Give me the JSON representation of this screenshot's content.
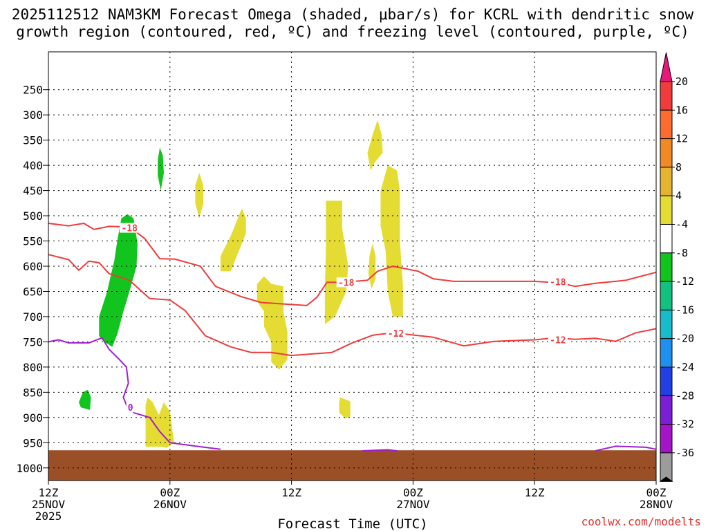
{
  "title": {
    "line1": "2025112512 NAM3KM Forecast Omega (shaded, μbar/s) for KCRL with dendritic snow",
    "line2": "growth region (contoured, red, ºC) and freezing level (contoured, purple, ºC)"
  },
  "credit": "coolwx.com/modelts",
  "chart_data": {
    "type": "time-height",
    "xlabel": "Forecast Time (UTC)",
    "xlim": [
      0,
      60
    ],
    "x_ticks": [
      {
        "h": 0,
        "label": "12Z",
        "sub": "25NOV",
        "sub2": "2025"
      },
      {
        "h": 12,
        "label": "00Z",
        "sub": "26NOV"
      },
      {
        "h": 24,
        "label": "12Z",
        "sub": ""
      },
      {
        "h": 36,
        "label": "00Z",
        "sub": "27NOV"
      },
      {
        "h": 48,
        "label": "12Z",
        "sub": ""
      },
      {
        "h": 60,
        "label": "00Z",
        "sub": "28NOV"
      }
    ],
    "ylim": [
      1025,
      175
    ],
    "y_ticks": [
      250,
      300,
      350,
      400,
      450,
      500,
      550,
      600,
      650,
      700,
      750,
      800,
      850,
      900,
      950,
      1000
    ],
    "surface_top_hPa": 965,
    "colorbar": {
      "labels": [
        "20",
        "16",
        "12",
        "8",
        "4",
        "-4",
        "-8",
        "-12",
        "-16",
        "-20",
        "-24",
        "-28",
        "-32",
        "-36"
      ],
      "colors": [
        "#f23b3b",
        "#ff6a2e",
        "#ef8a25",
        "#e4b330",
        "#e4dc32",
        "#ffffff",
        "#12c41e",
        "#12c07f",
        "#16bcc9",
        "#1e90f0",
        "#2040e6",
        "#7a1fd6",
        "#a514c8",
        "#9c9c9c"
      ],
      "top_arrow_color": "#e8177a",
      "bottom_arrow_color": "#000000"
    },
    "series": [
      {
        "name": "-18",
        "color": "#ef3b3b",
        "points": [
          [
            0,
            515
          ],
          [
            2,
            520
          ],
          [
            3.5,
            515
          ],
          [
            4.5,
            527
          ],
          [
            6,
            521
          ],
          [
            8,
            522
          ],
          [
            9.5,
            545
          ],
          [
            11,
            585
          ],
          [
            12.5,
            586
          ],
          [
            15,
            600
          ],
          [
            16.5,
            640
          ],
          [
            19,
            660
          ],
          [
            21,
            672
          ],
          [
            24,
            676
          ],
          [
            25.5,
            678
          ],
          [
            26.5,
            662
          ],
          [
            27.5,
            632
          ],
          [
            29,
            632
          ],
          [
            31.5,
            628
          ],
          [
            32.5,
            610
          ],
          [
            34,
            600
          ],
          [
            36.5,
            610
          ],
          [
            38,
            625
          ],
          [
            40,
            630
          ],
          [
            44,
            630
          ],
          [
            48,
            630
          ],
          [
            50.5,
            633
          ],
          [
            52,
            640
          ],
          [
            54,
            634
          ],
          [
            57,
            628
          ],
          [
            60,
            612
          ]
        ]
      },
      {
        "name": "-12",
        "color": "#ef3b3b",
        "points": [
          [
            0,
            577
          ],
          [
            2,
            587
          ],
          [
            3,
            608
          ],
          [
            4,
            590
          ],
          [
            5,
            593
          ],
          [
            6,
            615
          ],
          [
            8,
            628
          ],
          [
            10,
            664
          ],
          [
            12,
            667
          ],
          [
            13.5,
            688
          ],
          [
            15.5,
            738
          ],
          [
            18,
            760
          ],
          [
            20,
            771
          ],
          [
            22,
            771
          ],
          [
            24,
            777
          ],
          [
            28,
            771
          ],
          [
            30,
            752
          ],
          [
            32,
            737
          ],
          [
            34,
            732
          ],
          [
            38,
            741
          ],
          [
            41,
            758
          ],
          [
            44,
            749
          ],
          [
            48,
            746
          ],
          [
            50,
            742
          ],
          [
            52,
            745
          ],
          [
            54,
            743
          ],
          [
            56,
            749
          ],
          [
            58,
            732
          ],
          [
            60,
            724
          ]
        ]
      },
      {
        "name": "0",
        "color": "#a21dce",
        "points": [
          [
            0,
            750
          ],
          [
            1,
            746
          ],
          [
            2,
            752
          ],
          [
            4,
            752
          ],
          [
            5.3,
            742
          ],
          [
            6,
            765
          ],
          [
            7,
            785
          ],
          [
            7.7,
            800
          ],
          [
            7.9,
            832
          ],
          [
            7.4,
            860
          ],
          [
            7.8,
            880
          ],
          [
            8.5,
            891
          ],
          [
            10,
            900
          ],
          [
            11,
            928
          ],
          [
            12,
            950
          ],
          [
            15,
            958
          ],
          [
            17,
            963
          ]
        ]
      },
      {
        "name": "0-b",
        "color": "#a21dce",
        "points": [
          [
            31,
            966
          ],
          [
            33.5,
            964
          ],
          [
            34.4,
            966
          ]
        ]
      },
      {
        "name": "0-c",
        "color": "#a21dce",
        "points": [
          [
            54,
            966
          ],
          [
            56,
            957
          ],
          [
            59,
            959
          ],
          [
            60,
            963
          ]
        ]
      }
    ],
    "contour_labels": [
      {
        "text": "-18",
        "h": 8.0,
        "p": 524
      },
      {
        "text": "-18",
        "h": 29.4,
        "p": 632
      },
      {
        "text": "-18",
        "h": 50.3,
        "p": 631
      },
      {
        "text": "-12",
        "h": 34.3,
        "p": 733
      },
      {
        "text": "-12",
        "h": 50.3,
        "p": 746
      },
      {
        "text": "0",
        "h": 8.1,
        "p": 880
      }
    ],
    "regions": [
      {
        "name": "omega-neg-4-8",
        "color": "#12c41e",
        "points": [
          [
            7.2,
            505
          ],
          [
            7.8,
            497
          ],
          [
            8.4,
            505
          ],
          [
            8.8,
            555
          ],
          [
            8.7,
            600
          ],
          [
            8.0,
            650
          ],
          [
            7.4,
            690
          ],
          [
            6.8,
            735
          ],
          [
            6.3,
            760
          ],
          [
            5.4,
            748
          ],
          [
            5.0,
            738
          ],
          [
            5.0,
            700
          ],
          [
            5.8,
            650
          ],
          [
            6.2,
            615
          ],
          [
            6.5,
            590
          ],
          [
            6.8,
            550
          ]
        ]
      },
      {
        "name": "omega-neg-4-8",
        "color": "#12c41e",
        "points": [
          [
            11.0,
            365
          ],
          [
            11.3,
            380
          ],
          [
            11.4,
            415
          ],
          [
            11.1,
            450
          ],
          [
            10.8,
            420
          ],
          [
            10.8,
            390
          ]
        ]
      },
      {
        "name": "omega-neg-4-8",
        "color": "#12c41e",
        "points": [
          [
            3.4,
            850
          ],
          [
            3.9,
            845
          ],
          [
            4.2,
            860
          ],
          [
            4.1,
            885
          ],
          [
            3.2,
            880
          ],
          [
            3.0,
            870
          ]
        ]
      },
      {
        "name": "omega-pos-4-8",
        "color": "#e4dc32",
        "points": [
          [
            14.9,
            415
          ],
          [
            15.3,
            440
          ],
          [
            15.3,
            475
          ],
          [
            14.9,
            505
          ],
          [
            14.5,
            475
          ],
          [
            14.5,
            440
          ]
        ]
      },
      {
        "name": "omega-pos-4-8",
        "color": "#e4dc32",
        "points": [
          [
            19.1,
            485
          ],
          [
            19.5,
            505
          ],
          [
            19.5,
            535
          ],
          [
            18.6,
            580
          ],
          [
            18.0,
            610
          ],
          [
            17.0,
            610
          ],
          [
            17.0,
            580
          ],
          [
            18.0,
            540
          ],
          [
            18.7,
            505
          ]
        ]
      },
      {
        "name": "omega-pos-4-8",
        "color": "#e4dc32",
        "points": [
          [
            21.3,
            620
          ],
          [
            22.0,
            635
          ],
          [
            23.2,
            640
          ],
          [
            23.2,
            690
          ],
          [
            23.6,
            730
          ],
          [
            23.6,
            785
          ],
          [
            22.8,
            805
          ],
          [
            22.0,
            790
          ],
          [
            22.0,
            750
          ],
          [
            21.3,
            720
          ],
          [
            21.3,
            690
          ],
          [
            20.6,
            670
          ],
          [
            20.6,
            635
          ]
        ]
      },
      {
        "name": "omega-pos-4-8",
        "color": "#e4dc32",
        "points": [
          [
            27.4,
            470
          ],
          [
            29.0,
            470
          ],
          [
            29.0,
            525
          ],
          [
            29.6,
            600
          ],
          [
            29.4,
            650
          ],
          [
            28.3,
            700
          ],
          [
            27.3,
            715
          ],
          [
            27.3,
            650
          ],
          [
            27.4,
            560
          ]
        ]
      },
      {
        "name": "omega-pos-4-8",
        "color": "#e4dc32",
        "points": [
          [
            32.5,
            310
          ],
          [
            32.9,
            340
          ],
          [
            33.0,
            375
          ],
          [
            32.2,
            395
          ],
          [
            31.8,
            410
          ],
          [
            31.5,
            375
          ],
          [
            32.0,
            340
          ]
        ]
      },
      {
        "name": "omega-pos-4-8",
        "color": "#e4dc32",
        "points": [
          [
            33.5,
            400
          ],
          [
            34.4,
            410
          ],
          [
            34.7,
            450
          ],
          [
            34.7,
            550
          ],
          [
            35.0,
            640
          ],
          [
            35.0,
            700
          ],
          [
            34.0,
            700
          ],
          [
            33.5,
            650
          ],
          [
            33.3,
            570
          ],
          [
            32.8,
            520
          ],
          [
            32.8,
            450
          ]
        ]
      },
      {
        "name": "omega-pos-4-8",
        "color": "#e4dc32",
        "points": [
          [
            32.0,
            555
          ],
          [
            32.3,
            580
          ],
          [
            32.3,
            625
          ],
          [
            31.9,
            645
          ],
          [
            31.6,
            615
          ],
          [
            31.7,
            580
          ]
        ]
      },
      {
        "name": "omega-pos-4-8",
        "color": "#e4dc32",
        "points": [
          [
            28.8,
            860
          ],
          [
            29.8,
            868
          ],
          [
            29.8,
            898
          ],
          [
            29.3,
            902
          ],
          [
            28.7,
            890
          ],
          [
            28.7,
            870
          ]
        ]
      },
      {
        "name": "omega-pos-4-8",
        "color": "#e4dc32",
        "points": [
          [
            9.8,
            860
          ],
          [
            10.3,
            870
          ],
          [
            10.9,
            895
          ],
          [
            11.4,
            870
          ],
          [
            12.0,
            888
          ],
          [
            12.4,
            950
          ],
          [
            11.7,
            960
          ],
          [
            11.0,
            958
          ],
          [
            9.6,
            958
          ],
          [
            9.6,
            875
          ]
        ]
      }
    ]
  }
}
